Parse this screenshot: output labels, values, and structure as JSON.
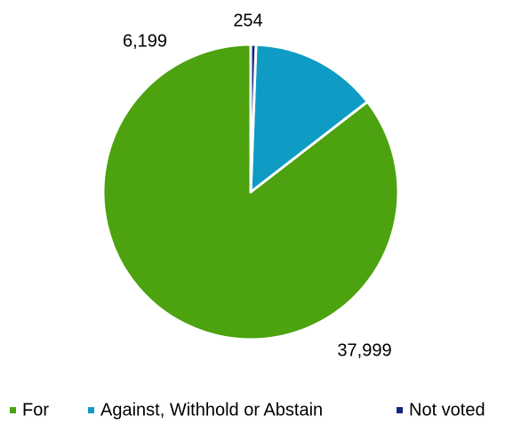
{
  "chart_data": {
    "type": "pie",
    "categories": [
      "For",
      "Against, Withhold or Abstain",
      "Not voted"
    ],
    "values": [
      37999,
      6199,
      254
    ],
    "value_labels": [
      "37,999",
      "6,199",
      "254"
    ],
    "colors": [
      "#4ca20f",
      "#0e9cc4",
      "#12277a"
    ],
    "legend_position": "bottom",
    "start_angle": "12 o'clock",
    "direction": "clockwise"
  }
}
